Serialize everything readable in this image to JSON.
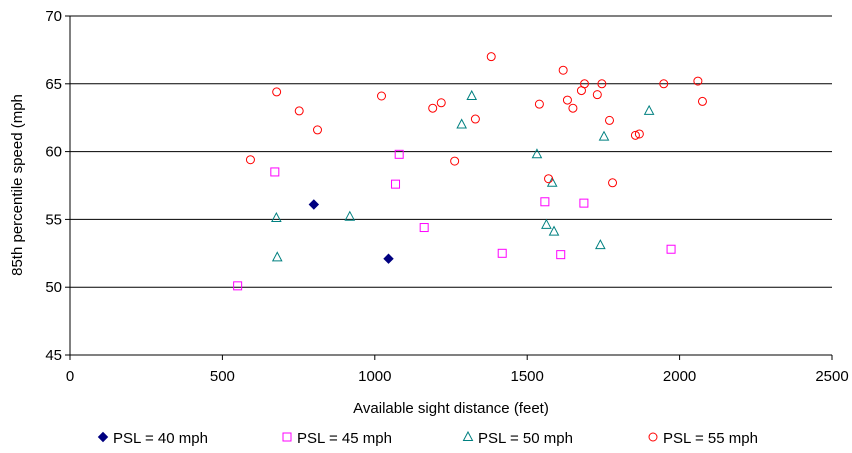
{
  "chart_data": {
    "type": "scatter",
    "title": "",
    "xlabel": "Available sight distance (feet)",
    "ylabel": "85th percentile speed (mph",
    "xlim": [
      0,
      2500
    ],
    "ylim": [
      45,
      70
    ],
    "xticks": [
      0,
      500,
      1000,
      1500,
      2000,
      2500
    ],
    "yticks": [
      45,
      50,
      55,
      60,
      65,
      70
    ],
    "grid": "horizontal",
    "legend_position": "bottom",
    "series": [
      {
        "name": "PSL = 40 mph",
        "marker": "diamond",
        "color": "#000080",
        "points": [
          [
            800,
            56.1
          ],
          [
            1045,
            52.1
          ]
        ]
      },
      {
        "name": "PSL = 45 mph",
        "marker": "square",
        "color": "#ff00ff",
        "points": [
          [
            550,
            50.1
          ],
          [
            672,
            58.5
          ],
          [
            1068,
            57.6
          ],
          [
            1080,
            59.8
          ],
          [
            1162,
            54.4
          ],
          [
            1418,
            52.5
          ],
          [
            1558,
            56.3
          ],
          [
            1610,
            52.4
          ],
          [
            1686,
            56.2
          ],
          [
            1972,
            52.8
          ]
        ]
      },
      {
        "name": "PSL = 50 mph",
        "marker": "triangle",
        "color": "#008080",
        "points": [
          [
            677,
            55.1
          ],
          [
            680,
            52.2
          ],
          [
            918,
            55.2
          ],
          [
            1285,
            62.0
          ],
          [
            1318,
            64.1
          ],
          [
            1532,
            59.8
          ],
          [
            1563,
            54.6
          ],
          [
            1582,
            57.7
          ],
          [
            1588,
            54.1
          ],
          [
            1740,
            53.1
          ],
          [
            1752,
            61.1
          ],
          [
            1900,
            63.0
          ]
        ]
      },
      {
        "name": "PSL = 55 mph",
        "marker": "circle",
        "color": "#ff0000",
        "points": [
          [
            592,
            59.4
          ],
          [
            678,
            64.4
          ],
          [
            752,
            63.0
          ],
          [
            812,
            61.6
          ],
          [
            1022,
            64.1
          ],
          [
            1190,
            63.2
          ],
          [
            1218,
            63.6
          ],
          [
            1330,
            62.4
          ],
          [
            1262,
            59.3
          ],
          [
            1382,
            67.0
          ],
          [
            1540,
            63.5
          ],
          [
            1570,
            58.0
          ],
          [
            1618,
            66.0
          ],
          [
            1632,
            63.8
          ],
          [
            1650,
            63.2
          ],
          [
            1678,
            64.5
          ],
          [
            1688,
            65.0
          ],
          [
            1730,
            64.2
          ],
          [
            1745,
            65.0
          ],
          [
            1770,
            62.3
          ],
          [
            1780,
            57.7
          ],
          [
            1855,
            61.2
          ],
          [
            1868,
            61.3
          ],
          [
            1948,
            65.0
          ],
          [
            2060,
            65.2
          ],
          [
            2075,
            63.7
          ]
        ]
      }
    ]
  }
}
